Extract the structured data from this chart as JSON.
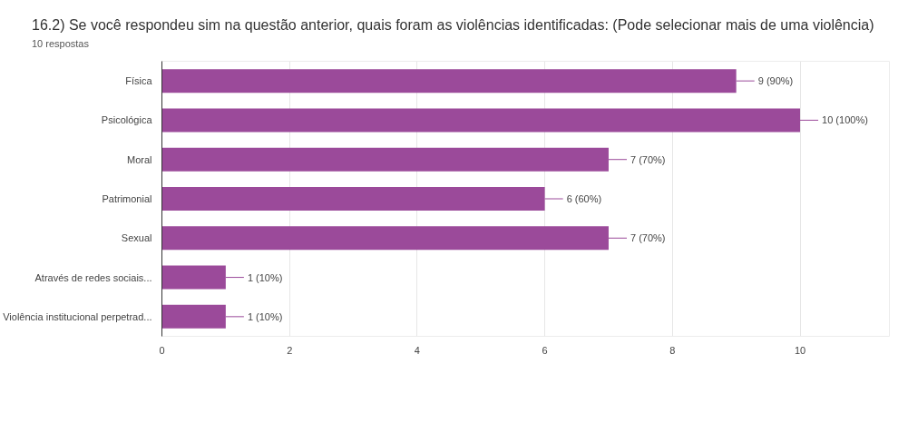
{
  "chart_data": {
    "type": "bar",
    "orientation": "horizontal",
    "title": "16.2) Se você respondeu sim na questão anterior, quais foram as violências identificadas:  (Pode selecionar mais de uma violência)",
    "subtitle": "10 respostas",
    "categories": [
      "Física",
      "Psicológica",
      "Moral",
      "Patrimonial",
      "Sexual",
      "Através de redes sociais...",
      "Violência institucional perpetrad..."
    ],
    "values": [
      9,
      10,
      7,
      6,
      7,
      1,
      1
    ],
    "value_labels": [
      "9 (90%)",
      "10 (100%)",
      "7 (70%)",
      "6 (60%)",
      "7 (70%)",
      "1 (10%)",
      "1 (10%)"
    ],
    "color": "#9b4a9a",
    "xlim": [
      0,
      11.4
    ],
    "xticks": [
      0,
      2,
      4,
      6,
      8,
      10
    ],
    "grid": "x"
  }
}
